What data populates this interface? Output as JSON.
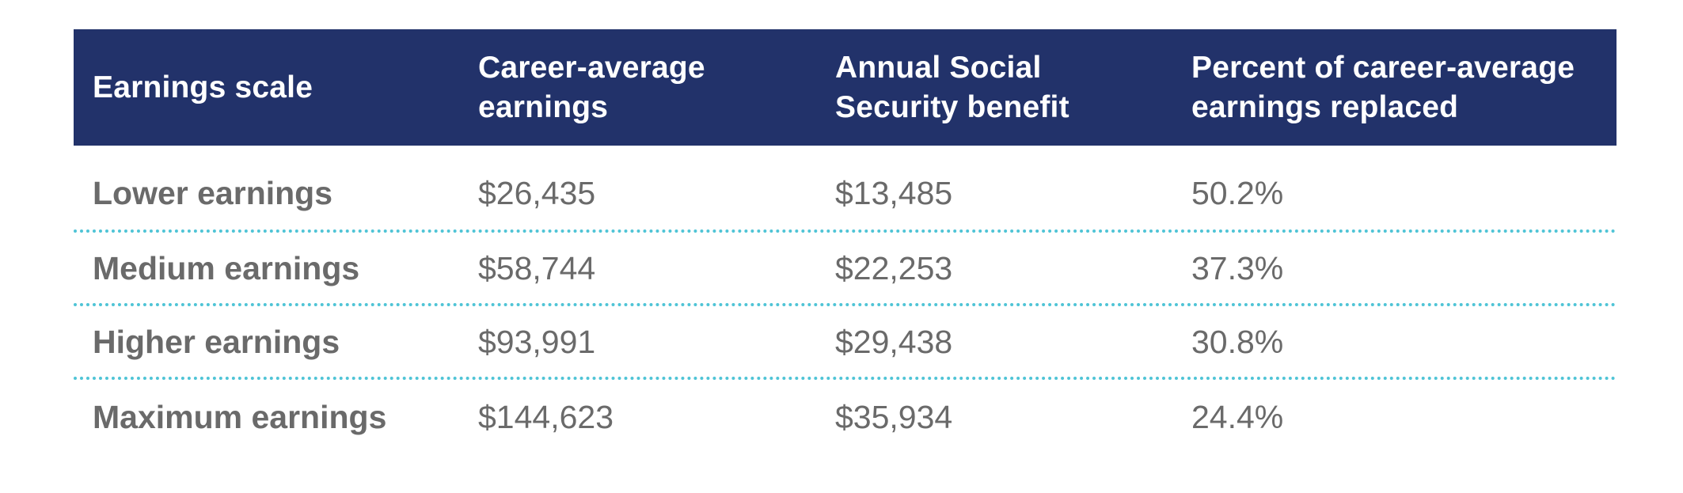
{
  "table": {
    "headers": [
      "Earnings scale",
      "Career-average earnings",
      "Annual Social Security benefit",
      "Percent of career-average earnings replaced"
    ],
    "header_lines": {
      "col1": [
        "Earnings scale"
      ],
      "col2": [
        "Career-average",
        "earnings"
      ],
      "col3": [
        "Annual Social",
        "Security benefit"
      ],
      "col4": [
        "Percent of career-average",
        "earnings replaced"
      ]
    },
    "rows": [
      {
        "scale": "Lower earnings",
        "career_average": "$26,435",
        "annual_benefit": "$13,485",
        "percent_replaced": "50.2%"
      },
      {
        "scale": "Medium earnings",
        "career_average": "$58,744",
        "annual_benefit": "$22,253",
        "percent_replaced": "37.3%"
      },
      {
        "scale": "Higher earnings",
        "career_average": "$93,991",
        "annual_benefit": "$29,438",
        "percent_replaced": "30.8%"
      },
      {
        "scale": "Maximum earnings",
        "career_average": "$144,623",
        "annual_benefit": "$35,934",
        "percent_replaced": "24.4%"
      }
    ]
  },
  "colors": {
    "header_bg": "#22326a",
    "header_text": "#ffffff",
    "body_text": "#6a6a6a",
    "divider": "#4fc4d6"
  }
}
